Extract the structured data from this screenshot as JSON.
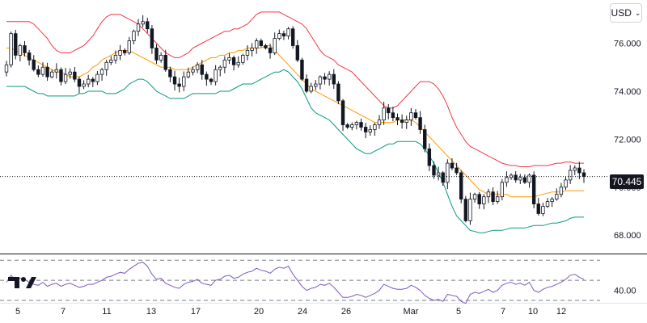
{
  "header": {
    "currency_label": "USD",
    "currency_icon": "chevron-down-icon"
  },
  "last_price_label": "70.445",
  "colors": {
    "upper_band": "#f23645",
    "basis": "#ff9800",
    "lower_band": "#089981",
    "rsi": "#7e57c2",
    "candle": "#131722"
  },
  "chart_data": [
    {
      "type": "candlestick",
      "title": "",
      "xlabel": "",
      "ylabel": "",
      "x_ticks": [
        "5",
        "7",
        "11",
        "13",
        "17",
        "20",
        "24",
        "26",
        "Mar",
        "5",
        "7",
        "10",
        "12"
      ],
      "y_ticks": [
        "68.000",
        "70.000",
        "72.000",
        "74.000",
        "76.000"
      ],
      "ylim": [
        67.3,
        77.6
      ],
      "last_price": 70.445,
      "closes": [
        75.1,
        76.4,
        75.5,
        75.9,
        75.6,
        75.3,
        74.9,
        74.7,
        75.0,
        74.6,
        74.8,
        74.9,
        74.4,
        74.7,
        74.8,
        74.5,
        74.2,
        74.3,
        74.5,
        74.4,
        74.7,
        74.9,
        75.2,
        75.3,
        75.5,
        75.7,
        75.6,
        76.1,
        76.5,
        76.8,
        76.9,
        76.6,
        75.8,
        75.3,
        75.5,
        74.9,
        74.6,
        74.3,
        74.2,
        74.6,
        74.8,
        74.9,
        75.1,
        74.7,
        74.5,
        74.4,
        74.9,
        75.0,
        75.3,
        75.4,
        75.1,
        75.2,
        75.5,
        75.7,
        75.8,
        76.1,
        75.9,
        75.8,
        75.6,
        76.2,
        76.4,
        76.3,
        76.6,
        75.9,
        75.3,
        74.5,
        74.0,
        74.2,
        74.3,
        74.6,
        74.5,
        74.7,
        74.3,
        73.6,
        72.6,
        72.5,
        72.6,
        72.7,
        72.5,
        72.3,
        72.4,
        72.6,
        72.8,
        73.3,
        73.1,
        72.9,
        72.8,
        72.7,
        72.8,
        73.1,
        72.9,
        72.4,
        71.6,
        70.9,
        70.5,
        70.6,
        70.2,
        71.0,
        70.8,
        70.6,
        69.5,
        68.6,
        69.5,
        69.7,
        69.3,
        69.6,
        69.8,
        69.4,
        69.6,
        70.2,
        70.4,
        70.5,
        70.3,
        70.4,
        70.2,
        70.5,
        69.3,
        68.9,
        69.2,
        69.4,
        69.5,
        69.7,
        70.0,
        70.3,
        70.7,
        70.8,
        70.6,
        70.445
      ],
      "upper_band": [
        76.9,
        76.9,
        76.9,
        76.9,
        76.9,
        76.9,
        76.8,
        76.6,
        76.4,
        76.2,
        75.9,
        75.7,
        75.6,
        75.6,
        75.6,
        75.7,
        75.8,
        75.9,
        76.1,
        76.3,
        76.6,
        76.9,
        77.1,
        77.2,
        77.2,
        77.2,
        77.1,
        77.0,
        76.9,
        76.8,
        76.6,
        76.4,
        76.2,
        76.0,
        75.8,
        75.6,
        75.5,
        75.4,
        75.4,
        75.5,
        75.6,
        75.8,
        75.9,
        76.0,
        76.1,
        76.2,
        76.3,
        76.4,
        76.5,
        76.5,
        76.6,
        76.6,
        76.7,
        76.8,
        77.0,
        77.2,
        77.3,
        77.3,
        77.3,
        77.3,
        77.3,
        77.2,
        77.1,
        77.0,
        76.9,
        76.8,
        76.6,
        76.3,
        76.0,
        75.7,
        75.5,
        75.4,
        75.3,
        75.1,
        75.0,
        74.9,
        74.8,
        74.6,
        74.4,
        74.2,
        74.0,
        73.8,
        73.6,
        73.4,
        73.3,
        73.3,
        73.4,
        73.6,
        73.8,
        74.0,
        74.2,
        74.4,
        74.4,
        74.4,
        74.3,
        74.1,
        73.8,
        73.4,
        72.9,
        72.5,
        72.2,
        71.9,
        71.7,
        71.6,
        71.5,
        71.4,
        71.3,
        71.2,
        71.1,
        71.0,
        70.95,
        70.9,
        70.9,
        70.85,
        70.85,
        70.85,
        70.9,
        70.9,
        70.9,
        70.9,
        70.95,
        71.0,
        71.0,
        71.05,
        71.05,
        71.0,
        71.0,
        71.0
      ],
      "basis": [
        75.8,
        75.8,
        75.7,
        75.6,
        75.5,
        75.4,
        75.3,
        75.2,
        75.1,
        75.0,
        74.9,
        74.8,
        74.8,
        74.7,
        74.6,
        74.6,
        74.6,
        74.7,
        74.8,
        75.0,
        75.1,
        75.3,
        75.4,
        75.5,
        75.6,
        75.7,
        75.7,
        75.7,
        75.6,
        75.5,
        75.4,
        75.3,
        75.2,
        75.1,
        75.0,
        75.0,
        75.0,
        74.9,
        74.9,
        74.9,
        74.9,
        75.0,
        75.1,
        75.2,
        75.3,
        75.4,
        75.4,
        75.5,
        75.5,
        75.6,
        75.6,
        75.7,
        75.7,
        75.8,
        75.8,
        75.8,
        75.8,
        75.9,
        75.9,
        75.7,
        75.5,
        75.3,
        75.1,
        74.9,
        74.7,
        74.5,
        74.3,
        74.1,
        74.0,
        73.9,
        73.8,
        73.7,
        73.6,
        73.5,
        73.4,
        73.3,
        73.2,
        73.1,
        73.0,
        72.9,
        72.8,
        72.7,
        72.7,
        72.7,
        72.7,
        72.7,
        72.8,
        72.8,
        72.8,
        72.8,
        72.7,
        72.5,
        72.3,
        72.1,
        71.9,
        71.7,
        71.5,
        71.3,
        71.1,
        70.9,
        70.7,
        70.5,
        70.3,
        70.1,
        69.9,
        69.8,
        69.7,
        69.7,
        69.7,
        69.7,
        69.7,
        69.6,
        69.6,
        69.6,
        69.6,
        69.6,
        69.6,
        69.65,
        69.7,
        69.75,
        69.8,
        69.8,
        69.8,
        69.85,
        69.85,
        69.85,
        69.85,
        69.85
      ],
      "lower_band": [
        74.2,
        74.2,
        74.2,
        74.2,
        74.2,
        74.1,
        74.0,
        73.9,
        73.9,
        73.8,
        73.8,
        73.8,
        73.8,
        73.8,
        73.8,
        73.8,
        73.9,
        73.9,
        74.0,
        74.0,
        74.0,
        74.0,
        73.9,
        73.9,
        73.9,
        74.0,
        74.1,
        74.3,
        74.4,
        74.5,
        74.5,
        74.4,
        74.2,
        74.0,
        73.9,
        73.8,
        73.7,
        73.7,
        73.7,
        73.7,
        73.8,
        73.9,
        73.9,
        73.9,
        73.9,
        73.9,
        73.9,
        74.0,
        74.0,
        74.0,
        74.1,
        74.2,
        74.3,
        74.3,
        74.3,
        74.4,
        74.5,
        74.6,
        74.7,
        74.8,
        74.8,
        74.9,
        74.8,
        74.6,
        74.4,
        74.1,
        73.7,
        73.3,
        73.1,
        73.0,
        72.9,
        72.8,
        72.6,
        72.4,
        72.2,
        72.0,
        71.8,
        71.6,
        71.5,
        71.4,
        71.4,
        71.5,
        71.6,
        71.7,
        71.8,
        71.8,
        71.9,
        71.9,
        71.9,
        71.9,
        71.9,
        71.8,
        71.6,
        71.3,
        71.0,
        70.6,
        70.2,
        69.7,
        69.2,
        68.8,
        68.6,
        68.4,
        68.2,
        68.15,
        68.1,
        68.1,
        68.15,
        68.2,
        68.2,
        68.2,
        68.25,
        68.3,
        68.3,
        68.3,
        68.3,
        68.35,
        68.4,
        68.4,
        68.4,
        68.45,
        68.5,
        68.5,
        68.55,
        68.6,
        68.7,
        68.75,
        68.75,
        68.75
      ]
    },
    {
      "type": "line",
      "title": "",
      "xlabel": "",
      "ylabel": "",
      "y_ticks": [
        "40.00"
      ],
      "ylim": [
        30,
        75
      ],
      "band_levels": [
        70,
        50,
        30
      ],
      "rsi": [
        48,
        55,
        50,
        52,
        51,
        48,
        46,
        45,
        48,
        44,
        46,
        47,
        44,
        46,
        47,
        45,
        43,
        44,
        46,
        46,
        48,
        50,
        53,
        54,
        56,
        58,
        57,
        61,
        64,
        67,
        68,
        64,
        56,
        51,
        52,
        47,
        45,
        43,
        42,
        46,
        48,
        49,
        51,
        47,
        46,
        45,
        50,
        51,
        54,
        55,
        52,
        53,
        56,
        58,
        59,
        62,
        60,
        59,
        57,
        61,
        63,
        62,
        64,
        56,
        50,
        44,
        40,
        42,
        43,
        46,
        45,
        47,
        43,
        38,
        33,
        33,
        34,
        36,
        35,
        33,
        35,
        37,
        40,
        46,
        44,
        42,
        41,
        41,
        42,
        45,
        43,
        40,
        35,
        32,
        30,
        31,
        29,
        36,
        35,
        34,
        29,
        27,
        36,
        38,
        37,
        39,
        41,
        38,
        40,
        45,
        47,
        48,
        46,
        47,
        45,
        48,
        40,
        38,
        41,
        43,
        44,
        46,
        48,
        51,
        55,
        56,
        53,
        51
      ]
    }
  ]
}
